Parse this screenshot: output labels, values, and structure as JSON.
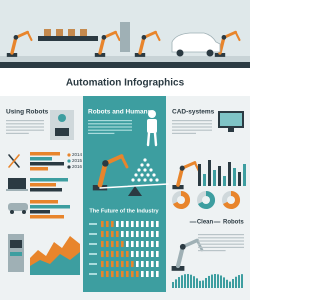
{
  "header": {
    "title": "Automation Infographics"
  },
  "sections": [
    {
      "title": "Using Robots",
      "legend": [
        "2014",
        "2015",
        "2016"
      ]
    },
    {
      "title": "Robots and Humans"
    },
    {
      "title": "CAD-systems"
    },
    {
      "title": "The Future of the Industry"
    },
    {
      "title_parts": [
        "Clean",
        "Robots"
      ]
    }
  ]
}
